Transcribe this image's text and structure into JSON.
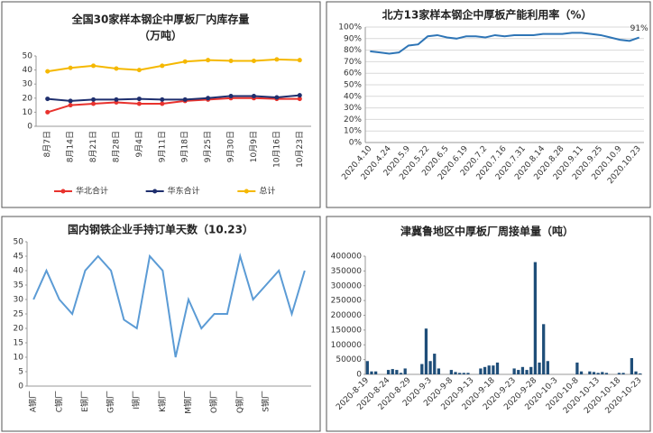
{
  "chart_data": [
    {
      "type": "line",
      "title": "全国30家样本钢企中厚板厂内库存量",
      "subtitle": "（万吨）",
      "categories": [
        "8月7日",
        "8月14日",
        "8月21日",
        "8月28日",
        "9月4日",
        "9月11日",
        "9月18日",
        "9月25日",
        "9月30日",
        "10月9日",
        "10月16日",
        "10月23日"
      ],
      "series": [
        {
          "name": "华北合计",
          "color": "#e8322d",
          "values": [
            10,
            15,
            16,
            17,
            16,
            16,
            18,
            19,
            20,
            20,
            19.5,
            19.5
          ]
        },
        {
          "name": "华东合计",
          "color": "#1f2f6e",
          "values": [
            19.5,
            18,
            19,
            19,
            19.5,
            19,
            19,
            20,
            21.5,
            21.5,
            20.5,
            22
          ]
        },
        {
          "name": "总计",
          "color": "#f5b800",
          "values": [
            39,
            41.5,
            43,
            41,
            40,
            43,
            46,
            47,
            46.5,
            46.5,
            47.5,
            47
          ]
        }
      ],
      "ylim": [
        0,
        50
      ],
      "yticks": [
        0,
        10,
        20,
        30,
        40,
        50
      ],
      "grid": false,
      "markers": true,
      "legend": "bottom"
    },
    {
      "type": "line",
      "title": "北方13家样本钢企中厚板产能利用率（%）",
      "categories": [
        "2020.4.10",
        null,
        "2020.4.24",
        null,
        "2020.5.9",
        null,
        "2020.5.22",
        null,
        "2020.6.5",
        null,
        "2020.6.19",
        null,
        "2020.7.2",
        null,
        "2020.7.16",
        null,
        "2020.7.31",
        null,
        "2020.8.14",
        null,
        "2020.8.28",
        null,
        "2020.9.11",
        null,
        "2020.9.25",
        null,
        "2020.10.9",
        null,
        "2020.10.23"
      ],
      "color": "#2e75b6",
      "values": [
        79,
        78,
        77,
        78,
        84,
        85,
        92,
        93,
        91,
        90,
        92,
        92,
        91,
        93,
        92,
        93,
        93,
        93,
        94,
        94,
        94,
        95,
        95,
        94,
        93,
        91,
        89,
        88,
        91
      ],
      "value_labels": [
        null,
        null,
        null,
        null,
        null,
        null,
        null,
        null,
        null,
        null,
        null,
        null,
        null,
        null,
        null,
        null,
        null,
        null,
        null,
        null,
        null,
        null,
        null,
        null,
        null,
        null,
        null,
        null,
        "91%"
      ],
      "ylim": [
        0,
        100
      ],
      "yticks": [
        {
          "value": 0,
          "label": "0%"
        },
        {
          "value": 10,
          "label": "10%"
        },
        {
          "value": 20,
          "label": "20%"
        },
        {
          "value": 30,
          "label": "30%"
        },
        {
          "value": 40,
          "label": "40%"
        },
        {
          "value": 50,
          "label": "50%"
        },
        {
          "value": 60,
          "label": "60%"
        },
        {
          "value": 70,
          "label": "70%"
        },
        {
          "value": 80,
          "label": "80%"
        },
        {
          "value": 90,
          "label": "90%"
        },
        {
          "value": 100,
          "label": "100%"
        }
      ],
      "grid": true
    },
    {
      "type": "line",
      "title": "国内钢铁企业手持订单天数（10.23）",
      "categories": [
        "A钢厂",
        null,
        "C钢厂",
        null,
        "E钢厂",
        null,
        "G钢厂",
        null,
        "I钢厂",
        null,
        "K钢厂",
        null,
        "M钢厂",
        null,
        "O钢厂",
        null,
        "Q钢厂",
        null,
        "S钢厂",
        null,
        null,
        null
      ],
      "color": "#5b9bd5",
      "values": [
        30,
        40,
        30,
        25,
        40,
        45,
        40,
        23,
        20,
        45,
        40,
        10,
        30,
        20,
        25,
        25,
        45,
        30,
        35,
        40,
        25,
        40
      ],
      "ylim": [
        0,
        50
      ],
      "yticks": [
        0,
        5,
        10,
        15,
        20,
        25,
        30,
        35,
        40,
        45,
        50
      ],
      "grid": false
    },
    {
      "type": "bar",
      "title": "津冀鲁地区中厚板厂周接单量（吨）",
      "categories": [
        "2020-8-19",
        null,
        null,
        null,
        null,
        "2020-8-24",
        null,
        null,
        null,
        null,
        "2020-8-29",
        null,
        null,
        null,
        null,
        "2020-9-3",
        null,
        null,
        null,
        null,
        "2020-9-8",
        null,
        null,
        null,
        null,
        "2020-9-13",
        null,
        null,
        null,
        null,
        "2020-9-18",
        null,
        null,
        null,
        null,
        "2020-9-23",
        null,
        null,
        null,
        null,
        "2020-9-28",
        null,
        null,
        null,
        null,
        "2020-10-3",
        null,
        null,
        null,
        null,
        "2020-10-8",
        null,
        null,
        null,
        null,
        "2020-10-13",
        null,
        null,
        null,
        null,
        "2020-10-18",
        null,
        null,
        null,
        null,
        "2020-10-23"
      ],
      "color": "#1f4e79",
      "values": [
        45000,
        10000,
        10000,
        0,
        0,
        15000,
        18000,
        15000,
        5000,
        20000,
        0,
        0,
        0,
        35000,
        155000,
        45000,
        70000,
        20000,
        0,
        0,
        15000,
        8000,
        5000,
        5000,
        5000,
        0,
        0,
        20000,
        25000,
        30000,
        30000,
        40000,
        0,
        0,
        0,
        20000,
        15000,
        25000,
        15000,
        25000,
        380000,
        40000,
        170000,
        45000,
        0,
        0,
        0,
        0,
        0,
        0,
        40000,
        10000,
        0,
        10000,
        8000,
        5000,
        8000,
        5000,
        0,
        0,
        5000,
        5000,
        0,
        55000,
        10000,
        3000
      ],
      "ylim": [
        0,
        400000
      ],
      "yticks": [
        0,
        50000,
        100000,
        150000,
        200000,
        250000,
        300000,
        350000,
        400000
      ],
      "grid": false
    }
  ]
}
